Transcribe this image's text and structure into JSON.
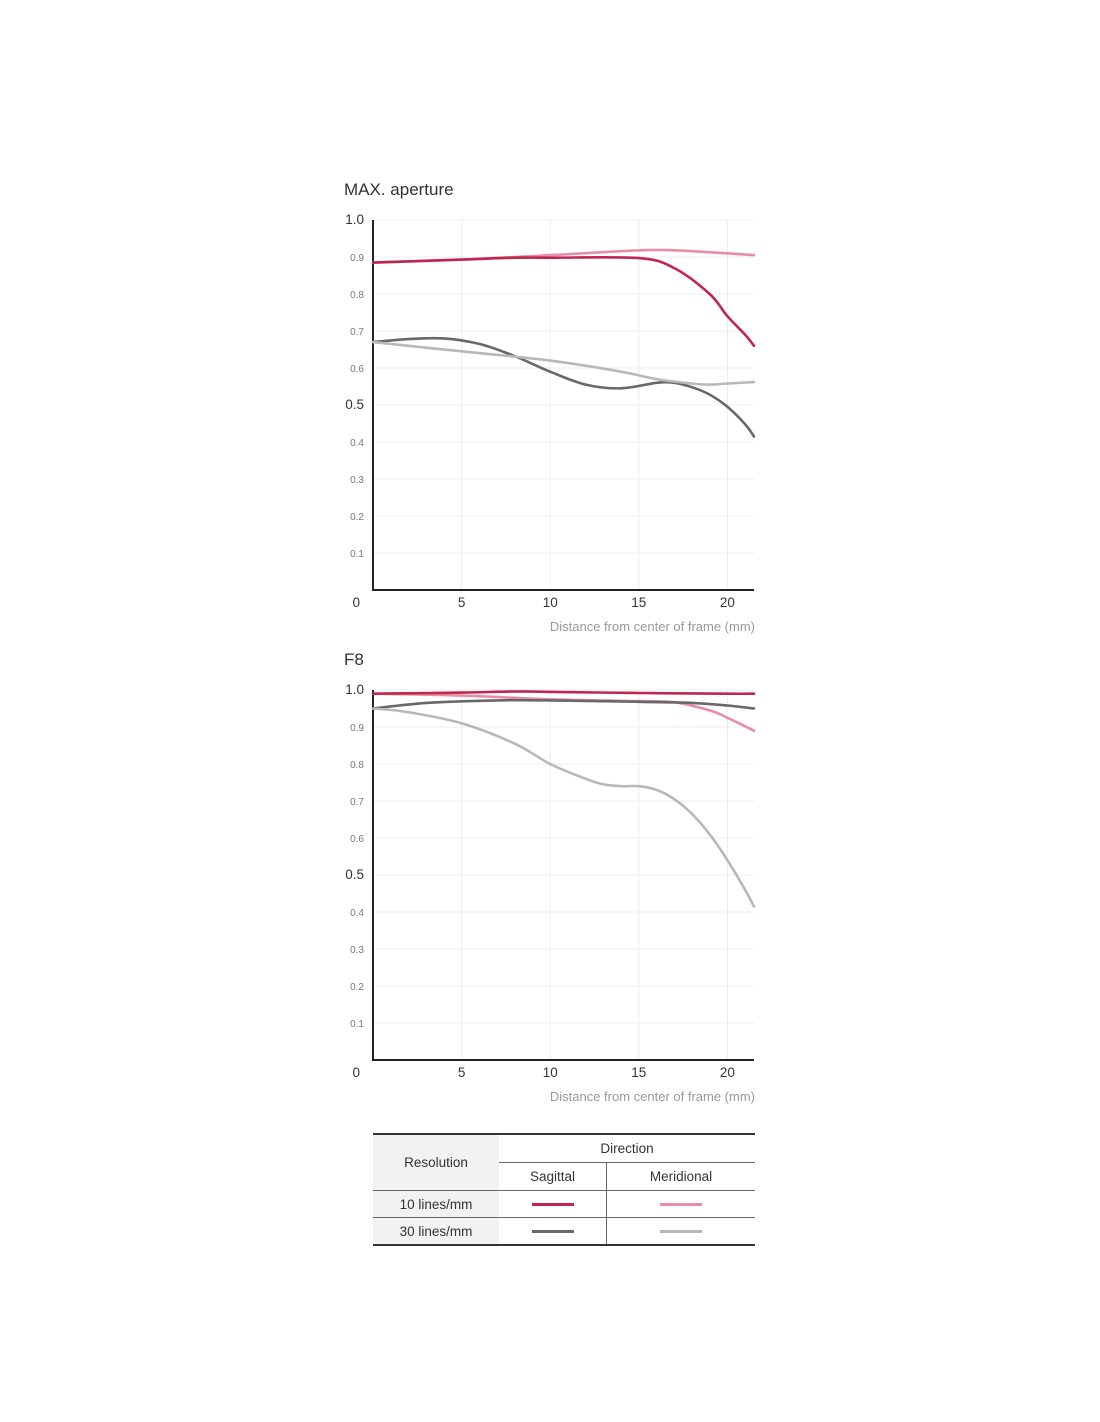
{
  "chart_data": [
    {
      "type": "line",
      "title": "MAX. aperture",
      "xlabel": "Distance from center of frame (mm)",
      "ylabel": "",
      "xlim": [
        0,
        21.5
      ],
      "ylim": [
        0,
        1.0
      ],
      "x_ticks": [
        "5",
        "10",
        "15",
        "20"
      ],
      "x_tick_values": [
        5,
        10,
        15,
        20
      ],
      "y_ticks": [
        "0",
        "0.1",
        "0.2",
        "0.3",
        "0.4",
        "0.5",
        "0.6",
        "0.7",
        "0.8",
        "0.9",
        "1.0"
      ],
      "y_tick_values": [
        0,
        0.1,
        0.2,
        0.3,
        0.4,
        0.5,
        0.6,
        0.7,
        0.8,
        0.9,
        1.0
      ],
      "grid": true,
      "series": [
        {
          "resolution": "10 lines/mm",
          "direction": "Meridional",
          "color": "#e88ea3",
          "x": [
            0,
            5,
            10,
            15,
            17,
            20,
            21.5
          ],
          "y": [
            0.885,
            0.893,
            0.905,
            0.918,
            0.918,
            0.91,
            0.905
          ]
        },
        {
          "resolution": "10 lines/mm",
          "direction": "Sagittal",
          "color": "#c0264f",
          "x": [
            0,
            5,
            8,
            10,
            15,
            17,
            19,
            20,
            21,
            21.5
          ],
          "y": [
            0.885,
            0.893,
            0.898,
            0.898,
            0.897,
            0.87,
            0.8,
            0.74,
            0.69,
            0.66
          ]
        },
        {
          "resolution": "30 lines/mm",
          "direction": "Sagittal",
          "color": "#686868",
          "x": [
            0,
            2,
            4,
            6,
            8,
            10,
            12,
            14,
            16,
            17,
            18,
            19,
            20,
            21,
            21.5
          ],
          "y": [
            0.67,
            0.678,
            0.68,
            0.665,
            0.632,
            0.59,
            0.555,
            0.545,
            0.56,
            0.56,
            0.548,
            0.528,
            0.495,
            0.448,
            0.415
          ]
        },
        {
          "resolution": "30 lines/mm",
          "direction": "Meridional",
          "color": "#b8b8b8",
          "x": [
            0,
            5,
            10,
            14,
            16,
            18,
            19,
            20,
            21.5
          ],
          "y": [
            0.67,
            0.645,
            0.62,
            0.59,
            0.57,
            0.558,
            0.555,
            0.558,
            0.562
          ]
        }
      ]
    },
    {
      "type": "line",
      "title": "F8",
      "xlabel": "Distance from center of frame (mm)",
      "ylabel": "",
      "xlim": [
        0,
        21.5
      ],
      "ylim": [
        0,
        1.0
      ],
      "x_ticks": [
        "5",
        "10",
        "15",
        "20"
      ],
      "x_tick_values": [
        5,
        10,
        15,
        20
      ],
      "y_ticks": [
        "0",
        "0.1",
        "0.2",
        "0.3",
        "0.4",
        "0.5",
        "0.6",
        "0.7",
        "0.8",
        "0.9",
        "1.0"
      ],
      "y_tick_values": [
        0,
        0.1,
        0.2,
        0.3,
        0.4,
        0.5,
        0.6,
        0.7,
        0.8,
        0.9,
        1.0
      ],
      "grid": true,
      "series": [
        {
          "resolution": "10 lines/mm",
          "direction": "Meridional",
          "color": "#e88ea3",
          "x": [
            0,
            5,
            10,
            15,
            17,
            19,
            20,
            21.5
          ],
          "y": [
            0.99,
            0.985,
            0.975,
            0.97,
            0.967,
            0.945,
            0.925,
            0.89
          ]
        },
        {
          "resolution": "10 lines/mm",
          "direction": "Sagittal",
          "color": "#c0264f",
          "x": [
            0,
            5,
            8,
            10,
            15,
            20,
            21.5
          ],
          "y": [
            0.99,
            0.993,
            0.996,
            0.995,
            0.992,
            0.99,
            0.99
          ]
        },
        {
          "resolution": "30 lines/mm",
          "direction": "Sagittal",
          "color": "#686868",
          "x": [
            0,
            3,
            7,
            10,
            15,
            18,
            20,
            21.5
          ],
          "y": [
            0.95,
            0.965,
            0.972,
            0.972,
            0.968,
            0.965,
            0.958,
            0.95
          ]
        },
        {
          "resolution": "30 lines/mm",
          "direction": "Meridional",
          "color": "#b8b8b8",
          "x": [
            0,
            2,
            5,
            8,
            10,
            12,
            13,
            14,
            15,
            16,
            17,
            18,
            19,
            20,
            21,
            21.5
          ],
          "y": [
            0.95,
            0.94,
            0.91,
            0.855,
            0.8,
            0.76,
            0.745,
            0.74,
            0.74,
            0.73,
            0.705,
            0.665,
            0.61,
            0.54,
            0.46,
            0.415
          ]
        }
      ]
    }
  ],
  "legend": {
    "resolution_header": "Resolution",
    "direction_header": "Direction",
    "sagittal_header": "Sagittal",
    "meridional_header": "Meridional",
    "rows": [
      {
        "label": "10 lines/mm",
        "sagittal_color": "#c0264f",
        "meridional_color": "#e88ea3"
      },
      {
        "label": "30 lines/mm",
        "sagittal_color": "#686868",
        "meridional_color": "#b8b8b8"
      }
    ]
  }
}
